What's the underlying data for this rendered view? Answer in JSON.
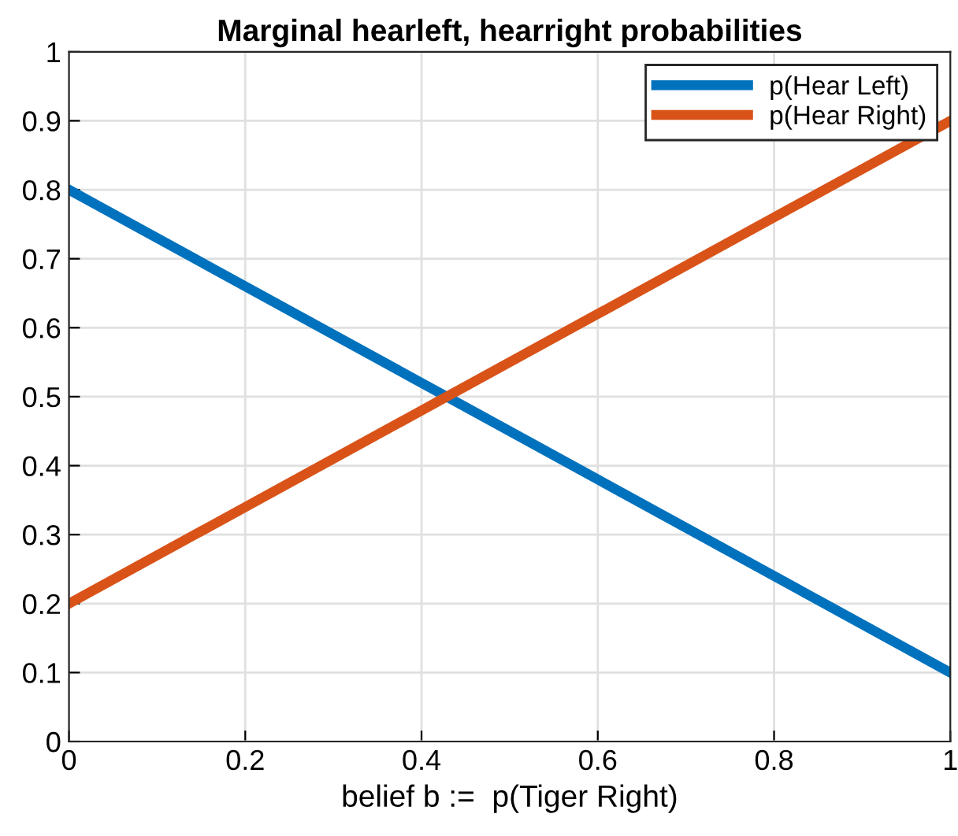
{
  "chart_data": {
    "type": "line",
    "title": "Marginal hearleft, hearright probabilities",
    "xlabel": "belief b :=  p(Tiger Right)",
    "x": [
      0,
      1
    ],
    "series": [
      {
        "name": "p(Hear Left)",
        "color": "#0072bd",
        "values": [
          0.8,
          0.1
        ]
      },
      {
        "name": "p(Hear Right)",
        "color": "#d95319",
        "values": [
          0.2,
          0.9
        ]
      }
    ],
    "xlim": [
      0,
      1
    ],
    "ylim": [
      0,
      1
    ],
    "xticks": [
      0,
      0.2,
      0.4,
      0.6,
      0.8,
      1
    ],
    "yticks": [
      0,
      0.1,
      0.2,
      0.3,
      0.4,
      0.5,
      0.6,
      0.7,
      0.8,
      0.9,
      1
    ],
    "grid": true,
    "legend": "top right",
    "line_style": "solid"
  }
}
